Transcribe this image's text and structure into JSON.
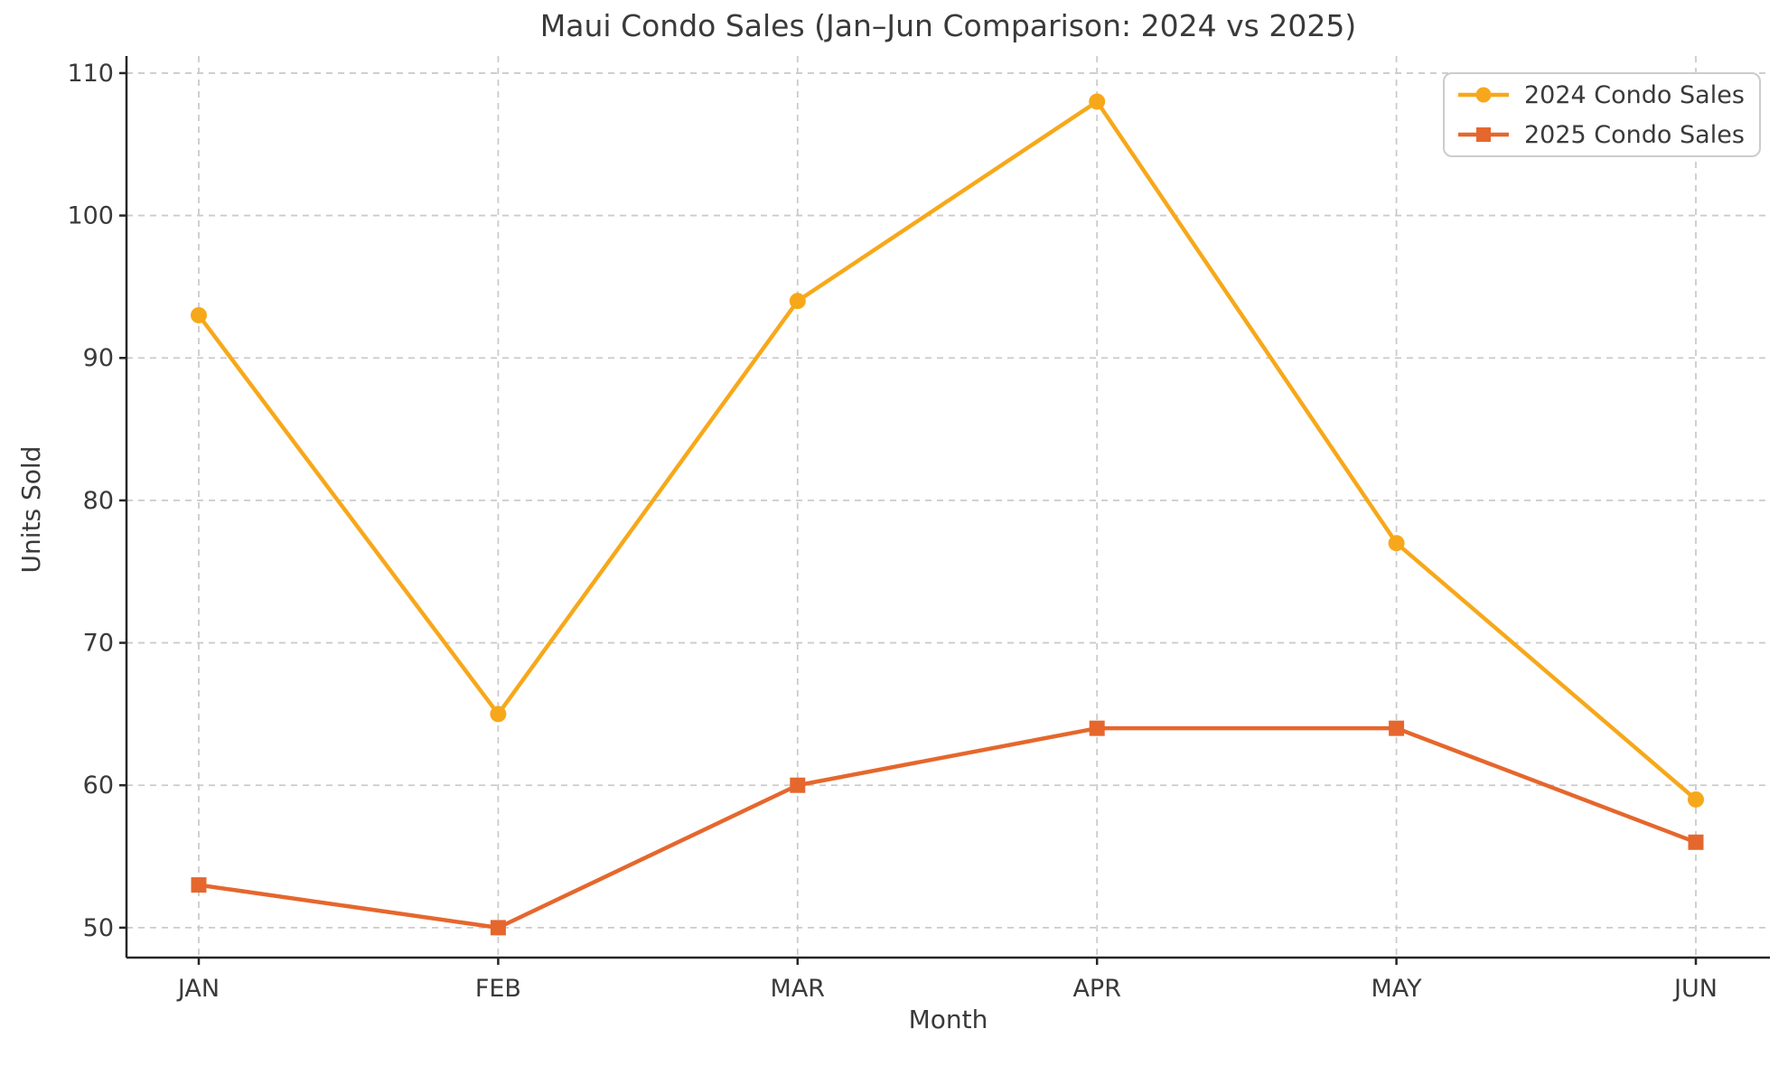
{
  "chart_data": {
    "type": "line",
    "title": "Maui Condo Sales (Jan–Jun Comparison: 2024 vs 2025)",
    "xlabel": "Month",
    "ylabel": "Units Sold",
    "categories": [
      "JAN",
      "FEB",
      "MAR",
      "APR",
      "MAY",
      "JUN"
    ],
    "series": [
      {
        "name": "2024 Condo Sales",
        "color": "#F7A81A",
        "marker": "circle",
        "values": [
          93,
          65,
          94,
          108,
          77,
          59
        ]
      },
      {
        "name": "2025 Condo Sales",
        "color": "#E5672D",
        "marker": "square",
        "values": [
          53,
          50,
          60,
          64,
          64,
          56
        ]
      }
    ],
    "yticks": [
      50,
      60,
      70,
      80,
      90,
      100,
      110
    ],
    "ylim": [
      47.9,
      111.2
    ],
    "grid": true,
    "grid_style": "dashed",
    "legend_position": "upper right"
  },
  "style": {
    "background": "#ffffff",
    "grid_color": "#cbcbcb",
    "spine_color": "#262626",
    "text_color": "#3a3a3a",
    "legend_border_color": "#cccccc"
  }
}
